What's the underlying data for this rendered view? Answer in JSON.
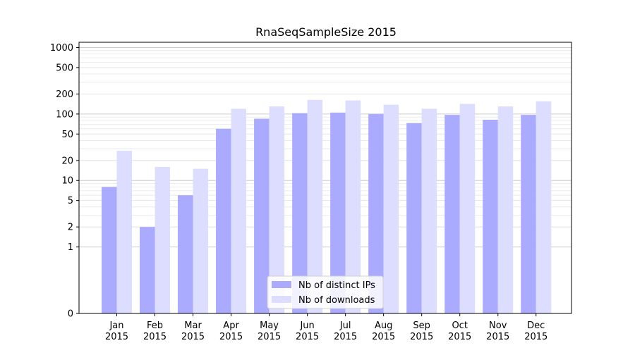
{
  "chart_data": {
    "type": "bar",
    "title": "RnaSeqSampleSize 2015",
    "xlabel": "",
    "ylabel": "",
    "yscale": "symlog",
    "ylim": [
      0,
      1200
    ],
    "grid": true,
    "legend_position": "lower-center",
    "categories": [
      "Jan\n2015",
      "Feb\n2015",
      "Mar\n2015",
      "Apr\n2015",
      "May\n2015",
      "Jun\n2015",
      "Jul\n2015",
      "Aug\n2015",
      "Sep\n2015",
      "Oct\n2015",
      "Nov\n2015",
      "Dec\n2015"
    ],
    "y_ticks": [
      {
        "value": 0,
        "label": "0"
      },
      {
        "value": 1,
        "label": "1"
      },
      {
        "value": 2,
        "label": "2"
      },
      {
        "value": 5,
        "label": "5"
      },
      {
        "value": 10,
        "label": "10"
      },
      {
        "value": 20,
        "label": "20"
      },
      {
        "value": 50,
        "label": "50"
      },
      {
        "value": 100,
        "label": "100"
      },
      {
        "value": 200,
        "label": "200"
      },
      {
        "value": 500,
        "label": "500"
      },
      {
        "value": 1000,
        "label": "1000"
      }
    ],
    "series": [
      {
        "name": "Nb of distinct IPs",
        "color": "#aaaaff",
        "values": [
          8,
          2,
          6,
          60,
          85,
          103,
          105,
          100,
          73,
          97,
          82,
          97
        ]
      },
      {
        "name": "Nb of downloads",
        "color": "#ddddff",
        "values": [
          28,
          16,
          15,
          120,
          130,
          163,
          160,
          138,
          120,
          142,
          130,
          155
        ]
      }
    ]
  }
}
